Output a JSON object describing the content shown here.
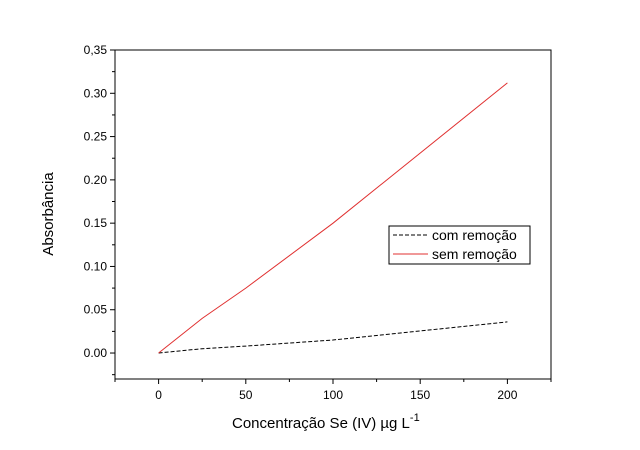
{
  "chart_data": {
    "type": "line",
    "title": "",
    "xlabel": "Concentração Se (IV) µg L",
    "xlabel_superscript": "-1",
    "ylabel": "Absorbância",
    "xlim": [
      -25,
      225
    ],
    "ylim": [
      -0.03,
      0.35
    ],
    "x_ticks": [
      {
        "value": 0,
        "label": "0"
      },
      {
        "value": 50,
        "label": "50"
      },
      {
        "value": 100,
        "label": "100"
      },
      {
        "value": 150,
        "label": "150"
      },
      {
        "value": 200,
        "label": "200"
      }
    ],
    "y_ticks": [
      {
        "value": 0.0,
        "label": "0.00"
      },
      {
        "value": 0.05,
        "label": "0.05"
      },
      {
        "value": 0.1,
        "label": "0.10"
      },
      {
        "value": 0.15,
        "label": "0.15"
      },
      {
        "value": 0.2,
        "label": "0.20"
      },
      {
        "value": 0.25,
        "label": "0.25"
      },
      {
        "value": 0.3,
        "label": "0.30"
      },
      {
        "value": 0.35,
        "label": "0,35"
      }
    ],
    "grid": false,
    "legend_position": "center-right",
    "series": [
      {
        "name": "com remoção",
        "color": "#000000",
        "dash": true,
        "x": [
          0,
          25,
          50,
          100,
          200
        ],
        "y": [
          0.0,
          0.005,
          0.008,
          0.015,
          0.036
        ]
      },
      {
        "name": "sem remoção",
        "color": "#e03030",
        "dash": false,
        "x": [
          0,
          25,
          50,
          100,
          200
        ],
        "y": [
          0.0,
          0.04,
          0.075,
          0.15,
          0.312
        ]
      }
    ]
  }
}
